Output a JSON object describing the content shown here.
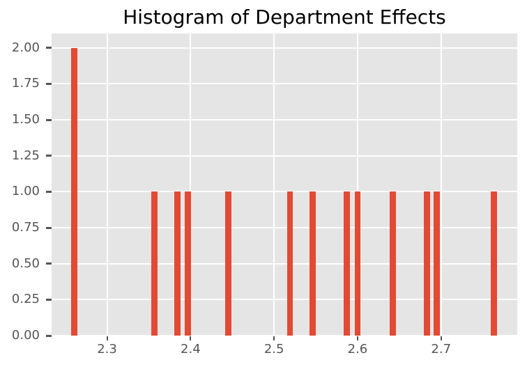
{
  "chart_data": {
    "type": "histogram",
    "title": "Histogram of Department Effects",
    "xlabel": "",
    "ylabel": "",
    "bin_centers": [
      2.261,
      2.357,
      2.384,
      2.397,
      2.445,
      2.519,
      2.546,
      2.587,
      2.6,
      2.642,
      2.683,
      2.695,
      2.763
    ],
    "counts": [
      2,
      1,
      1,
      1,
      1,
      1,
      1,
      1,
      1,
      1,
      1,
      1,
      1
    ],
    "bin_width": 0.0073,
    "xlim": [
      2.2336,
      2.7912
    ],
    "ylim": [
      0,
      2.1
    ],
    "xticks": {
      "values": [
        2.3,
        2.4,
        2.5,
        2.6,
        2.7
      ],
      "labels": [
        "2.3",
        "2.4",
        "2.5",
        "2.6",
        "2.7"
      ]
    },
    "yticks": {
      "values": [
        0,
        0.25,
        0.5,
        0.75,
        1.0,
        1.25,
        1.5,
        1.75,
        2.0
      ],
      "labels": [
        "0.00",
        "0.25",
        "0.50",
        "0.75",
        "1.00",
        "1.25",
        "1.50",
        "1.75",
        "2.00"
      ]
    },
    "grid": true,
    "legend": null,
    "colors": {
      "bar": "#E24A33",
      "plot_bg": "#E5E5E5",
      "grid": "#FFFFFF",
      "tick": "#555555",
      "title": "#000000",
      "figure_bg": "#FFFFFF"
    }
  }
}
